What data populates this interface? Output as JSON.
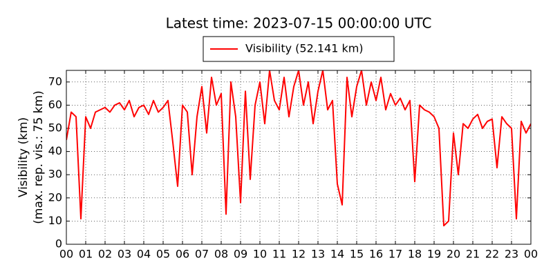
{
  "chart_data": {
    "type": "line",
    "title": "Latest time: 2023-07-15 00:00:00 UTC",
    "ylabel": [
      "Visibility (km)",
      "(max. rep. vis.: 75 km)"
    ],
    "legend_position": "top",
    "grid": true,
    "x": [
      0,
      0.25,
      0.5,
      0.75,
      1,
      1.25,
      1.5,
      1.75,
      2,
      2.25,
      2.5,
      2.75,
      3,
      3.25,
      3.5,
      3.75,
      4,
      4.25,
      4.5,
      4.75,
      5,
      5.25,
      5.5,
      5.75,
      6,
      6.25,
      6.5,
      6.75,
      7,
      7.25,
      7.5,
      7.75,
      8,
      8.25,
      8.5,
      8.75,
      9,
      9.25,
      9.5,
      9.75,
      10,
      10.25,
      10.5,
      10.75,
      11,
      11.25,
      11.5,
      11.75,
      12,
      12.25,
      12.5,
      12.75,
      13,
      13.25,
      13.5,
      13.75,
      14,
      14.25,
      14.5,
      14.75,
      15,
      15.25,
      15.5,
      15.75,
      16,
      16.25,
      16.5,
      16.75,
      17,
      17.25,
      17.5,
      17.75,
      18,
      18.25,
      18.5,
      18.75,
      19,
      19.25,
      19.5,
      19.75,
      20,
      20.25,
      20.5,
      20.75,
      21,
      21.25,
      21.5,
      21.75,
      22,
      22.25,
      22.5,
      22.75,
      23,
      23.25,
      23.5,
      23.75,
      24
    ],
    "series": [
      {
        "name": "Visibility (52.141 km)",
        "color": "#ff0000",
        "values": [
          45,
          57,
          55,
          11,
          55,
          50,
          57,
          58,
          59,
          57,
          60,
          61,
          58,
          62,
          55,
          59,
          60,
          56,
          62,
          57,
          59,
          62,
          44,
          25,
          60,
          57,
          30,
          55,
          68,
          48,
          72,
          60,
          65,
          13,
          70,
          55,
          18,
          66,
          28,
          60,
          70,
          52,
          75,
          62,
          58,
          72,
          55,
          68,
          75,
          60,
          70,
          52,
          66,
          75,
          58,
          62,
          26,
          17,
          72,
          55,
          68,
          75,
          60,
          70,
          62,
          72,
          58,
          65,
          60,
          63,
          58,
          62,
          27,
          60,
          58,
          57,
          55,
          50,
          8,
          10,
          48,
          30,
          52,
          50,
          54,
          56,
          50,
          53,
          54,
          33,
          55,
          52,
          50,
          11,
          53,
          48,
          52
        ]
      }
    ],
    "xlim": [
      0,
      24
    ],
    "xticks": [
      {
        "value": 0,
        "label": "00"
      },
      {
        "value": 1,
        "label": "01"
      },
      {
        "value": 2,
        "label": "02"
      },
      {
        "value": 3,
        "label": "03"
      },
      {
        "value": 4,
        "label": "04"
      },
      {
        "value": 5,
        "label": "05"
      },
      {
        "value": 6,
        "label": "06"
      },
      {
        "value": 7,
        "label": "07"
      },
      {
        "value": 8,
        "label": "08"
      },
      {
        "value": 9,
        "label": "09"
      },
      {
        "value": 10,
        "label": "10"
      },
      {
        "value": 11,
        "label": "11"
      },
      {
        "value": 12,
        "label": "12"
      },
      {
        "value": 13,
        "label": "13"
      },
      {
        "value": 14,
        "label": "14"
      },
      {
        "value": 15,
        "label": "15"
      },
      {
        "value": 16,
        "label": "16"
      },
      {
        "value": 17,
        "label": "17"
      },
      {
        "value": 18,
        "label": "18"
      },
      {
        "value": 19,
        "label": "19"
      },
      {
        "value": 20,
        "label": "20"
      },
      {
        "value": 21,
        "label": "21"
      },
      {
        "value": 22,
        "label": "22"
      },
      {
        "value": 23,
        "label": "23"
      },
      {
        "value": 24,
        "label": "00"
      }
    ],
    "ylim": [
      0,
      75
    ],
    "yticks": [
      0,
      10,
      20,
      30,
      40,
      50,
      60,
      70
    ]
  }
}
